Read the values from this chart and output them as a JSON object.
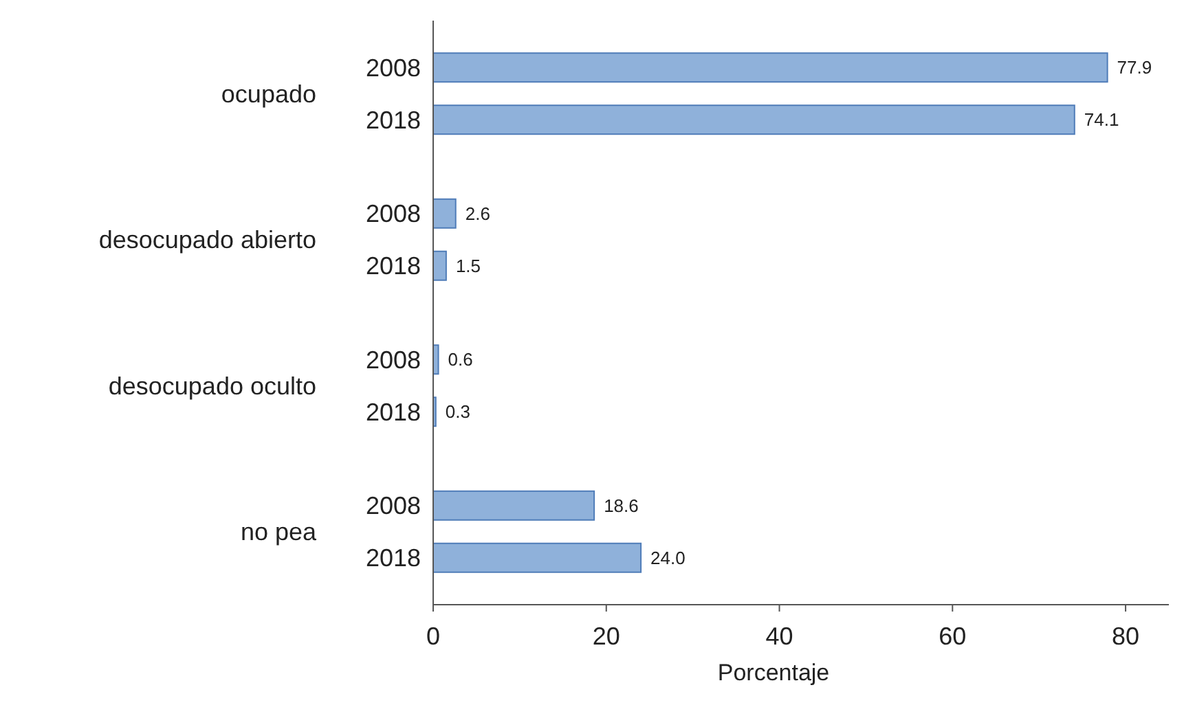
{
  "chart_data": {
    "type": "bar",
    "orientation": "horizontal",
    "xlabel": "Porcentaje",
    "categories": [
      "ocupado",
      "desocupado abierto",
      "desocupado oculto",
      "no pea"
    ],
    "series": [
      {
        "name": "2008",
        "color": "#8fb1da",
        "values": [
          77.9,
          2.6,
          0.6,
          18.6
        ],
        "value_labels": [
          "77.9",
          "2.6",
          "0.6",
          "18.6"
        ]
      },
      {
        "name": "2018",
        "color": "#8fb1da",
        "values": [
          74.1,
          1.5,
          0.3,
          24.0
        ],
        "value_labels": [
          "74.1",
          "1.5",
          "0.3",
          "24.0"
        ]
      }
    ],
    "xlim": [
      0,
      85
    ],
    "xticks": [
      0,
      20,
      40,
      60,
      80
    ],
    "grid": false
  }
}
